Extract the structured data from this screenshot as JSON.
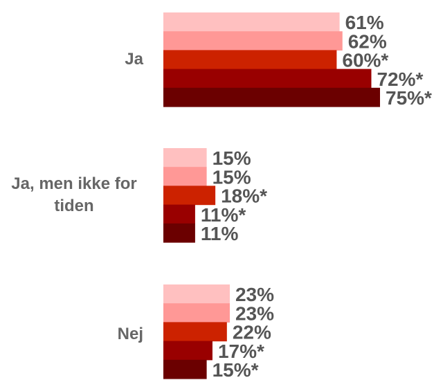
{
  "chart_data": {
    "type": "bar",
    "orientation": "horizontal",
    "categories": [
      "Ja",
      "Ja, men ikke for tiden",
      "Nej"
    ],
    "series": [
      {
        "values": [
          61,
          15,
          23
        ],
        "labels": [
          "61%",
          "15%",
          "23%"
        ],
        "color": "#FFC0C0"
      },
      {
        "values": [
          62,
          15,
          23
        ],
        "labels": [
          "62%",
          "15%",
          "23%"
        ],
        "color": "#FF9896"
      },
      {
        "values": [
          60,
          18,
          22
        ],
        "labels": [
          "60%*",
          "18%*",
          "22%"
        ],
        "color": "#CC2200"
      },
      {
        "values": [
          72,
          11,
          17
        ],
        "labels": [
          "72%*",
          "11%*",
          "17%*"
        ],
        "color": "#990000"
      },
      {
        "values": [
          75,
          11,
          15
        ],
        "labels": [
          "75%*",
          "11%",
          "15%*"
        ],
        "color": "#6B0000"
      }
    ],
    "xlim": [
      0,
      100
    ],
    "grid": false,
    "legend": "none",
    "label_color": "#555555",
    "category_color": "#666666"
  }
}
